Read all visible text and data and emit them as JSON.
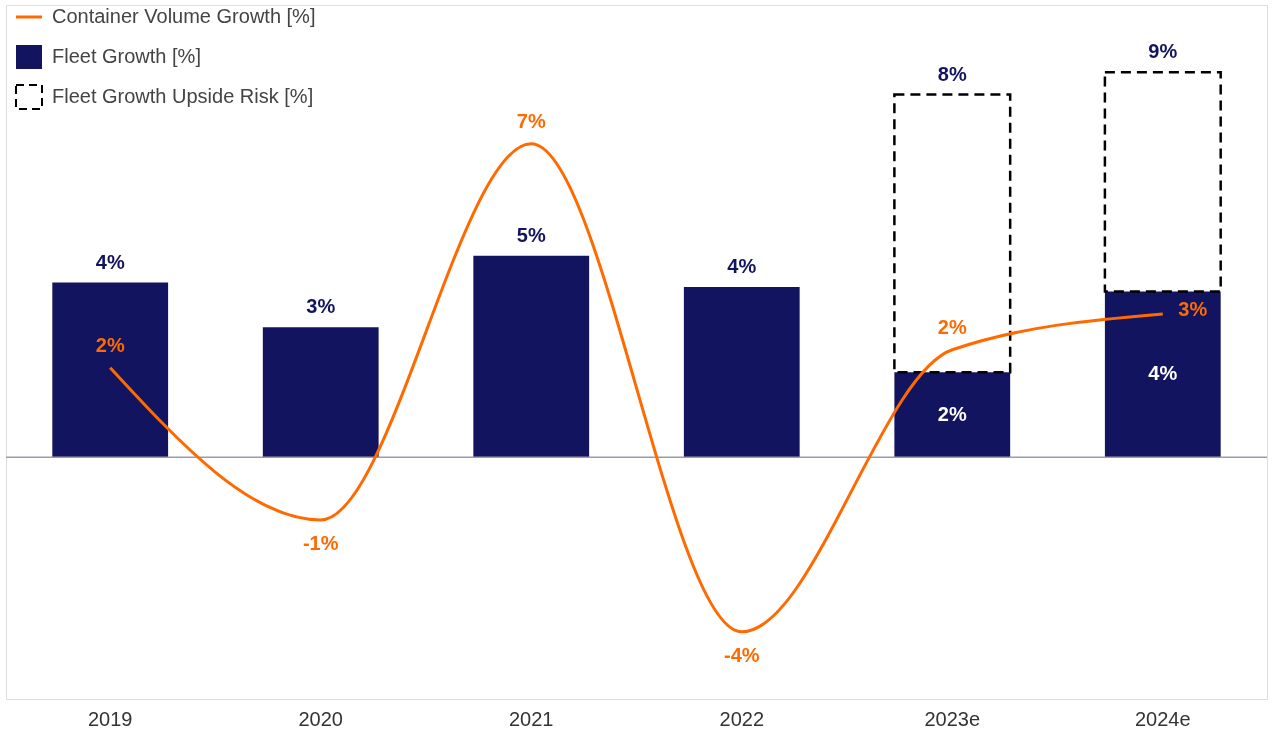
{
  "chart_data": {
    "type": "bar",
    "stacked": true,
    "legend": "top left",
    "categories": [
      "2019",
      "2020",
      "2021",
      "2022",
      "2023e",
      "2024e"
    ],
    "series": [
      {
        "name": "Container Volume Growth [%]",
        "type": "line",
        "color": "#ff6a00",
        "values": [
          2.0,
          -1.4,
          7.0,
          -3.9,
          2.4,
          3.2
        ],
        "value_labels": [
          "2%",
          "-1%",
          "7%",
          "-4%",
          "2%",
          "3%"
        ]
      },
      {
        "name": "Fleet Growth [%]",
        "color": "#12145f",
        "values": [
          3.9,
          2.9,
          4.5,
          3.8,
          1.9,
          3.7
        ],
        "value_labels": [
          "4%",
          "3%",
          "5%",
          "4%",
          "2%",
          "4%"
        ]
      },
      {
        "name": "Fleet Growth Upside Risk [%]",
        "color": "#000000",
        "line_style": "dashed",
        "values": [
          null,
          null,
          null,
          null,
          6.2,
          4.9
        ]
      }
    ],
    "totals": [
      null,
      null,
      null,
      null,
      "8%",
      "9%"
    ]
  }
}
